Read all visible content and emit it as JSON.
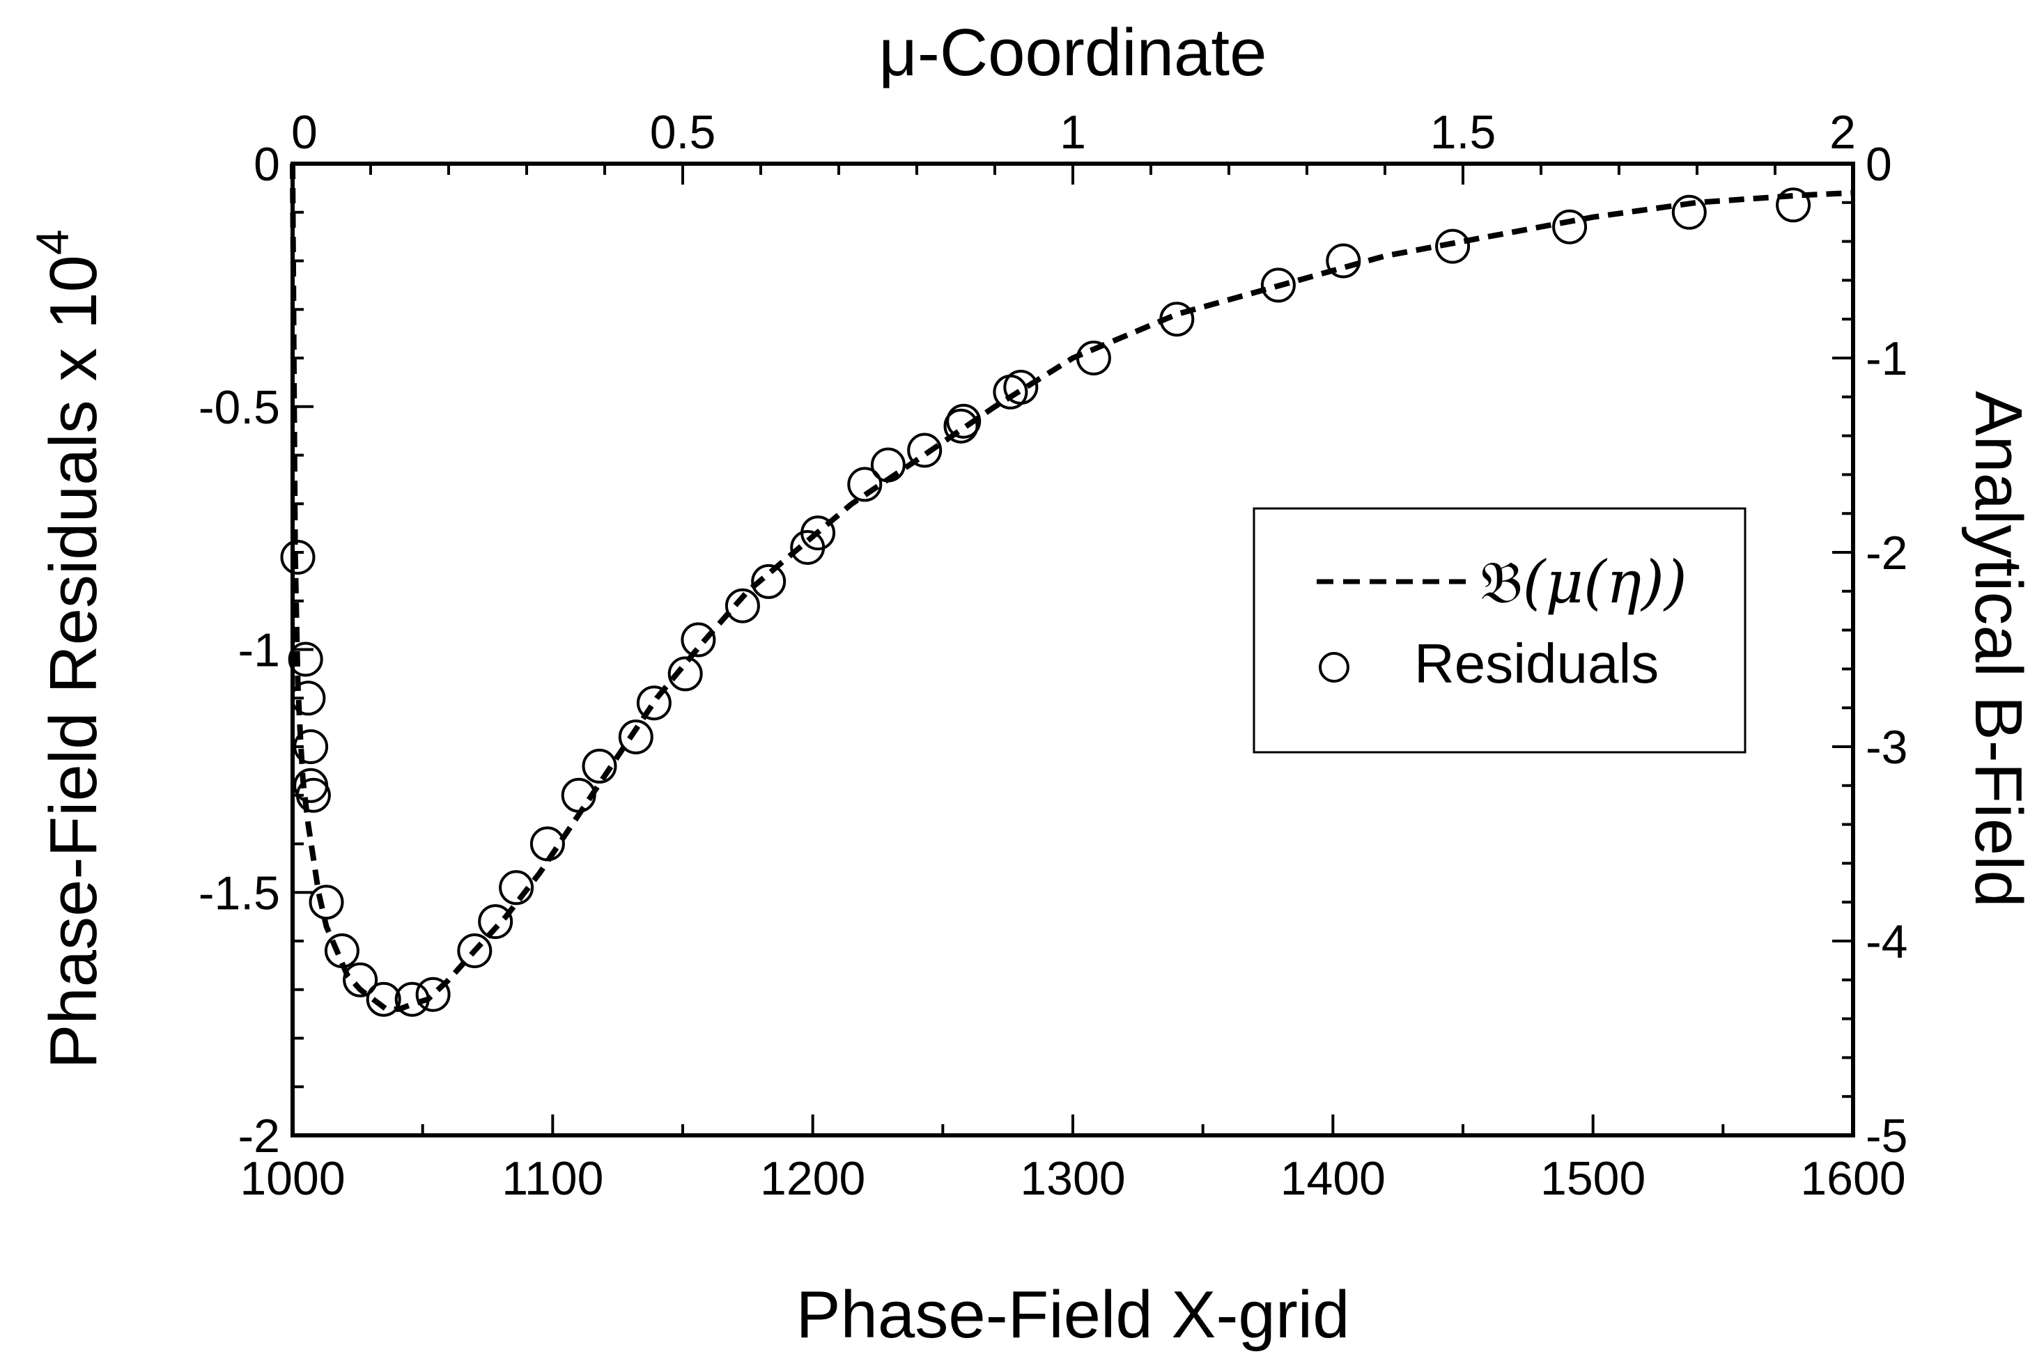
{
  "chart_data": {
    "type": "line",
    "title": "",
    "xlabel": "Phase-Field X-grid",
    "ylabel_main": "Phase-Field Residuals x 10",
    "ylabel_exponent": "4",
    "x2label": "μ-Coordinate",
    "y2label": "Analytical B-Field",
    "xlim": [
      1000,
      1600
    ],
    "ylim": [
      -2,
      0
    ],
    "x2lim": [
      0,
      2
    ],
    "y2lim": [
      -5,
      0
    ],
    "x_ticks": [
      "1000",
      "1100",
      "1200",
      "1300",
      "1400",
      "1500",
      "1600"
    ],
    "y_ticks": [
      "0",
      "-0.5",
      "-1",
      "-1.5",
      "-2"
    ],
    "x2_ticks": [
      "0",
      "0.5",
      "1",
      "1.5",
      "2"
    ],
    "y2_ticks": [
      "0",
      "-1",
      "-2",
      "-3",
      "-4",
      "-5"
    ],
    "grid": false,
    "legend_position": "right-middle",
    "series": [
      {
        "name": "𝔅(μ(η))",
        "style": "dashed-line",
        "x": [
          1000,
          1001,
          1002,
          1003,
          1004,
          1006,
          1008,
          1010,
          1013,
          1017,
          1021,
          1026,
          1031,
          1036,
          1041,
          1046,
          1052,
          1060,
          1070,
          1082,
          1095,
          1110,
          1125,
          1140,
          1157,
          1175,
          1195,
          1215,
          1240,
          1270,
          1300,
          1340,
          1380,
          1420,
          1460,
          1500,
          1540,
          1580,
          1600
        ],
        "y": [
          0,
          -0.8,
          -1.07,
          -1.18,
          -1.27,
          -1.36,
          -1.43,
          -1.5,
          -1.57,
          -1.62,
          -1.67,
          -1.7,
          -1.72,
          -1.74,
          -1.74,
          -1.73,
          -1.72,
          -1.68,
          -1.62,
          -1.55,
          -1.46,
          -1.34,
          -1.22,
          -1.1,
          -0.99,
          -0.88,
          -0.79,
          -0.7,
          -0.61,
          -0.5,
          -0.4,
          -0.31,
          -0.25,
          -0.19,
          -0.15,
          -0.11,
          -0.08,
          -0.065,
          -0.06
        ]
      },
      {
        "name": "Residuals",
        "style": "open-circles",
        "x": [
          1002,
          1005,
          1006,
          1007,
          1007,
          1008,
          1013,
          1019,
          1026,
          1035,
          1046,
          1054,
          1070,
          1078,
          1086,
          1098,
          1110,
          1118,
          1132,
          1139,
          1151,
          1156,
          1173,
          1183,
          1198,
          1202,
          1220,
          1229,
          1243,
          1257,
          1258,
          1276,
          1280,
          1308,
          1340,
          1379,
          1404,
          1446,
          1491,
          1537,
          1577
        ],
        "y": [
          -0.81,
          -1.02,
          -1.1,
          -1.2,
          -1.28,
          -1.3,
          -1.52,
          -1.62,
          -1.68,
          -1.72,
          -1.72,
          -1.71,
          -1.62,
          -1.56,
          -1.49,
          -1.4,
          -1.3,
          -1.24,
          -1.18,
          -1.11,
          -1.05,
          -0.98,
          -0.91,
          -0.86,
          -0.79,
          -0.76,
          -0.66,
          -0.62,
          -0.59,
          -0.54,
          -0.53,
          -0.47,
          -0.46,
          -0.4,
          -0.32,
          -0.25,
          -0.2,
          -0.17,
          -0.13,
          -0.1,
          -0.085
        ]
      }
    ],
    "legend": {
      "line_label_script": "𝔅",
      "line_label_args": "(μ(η))",
      "marker_label": "Residuals"
    }
  }
}
